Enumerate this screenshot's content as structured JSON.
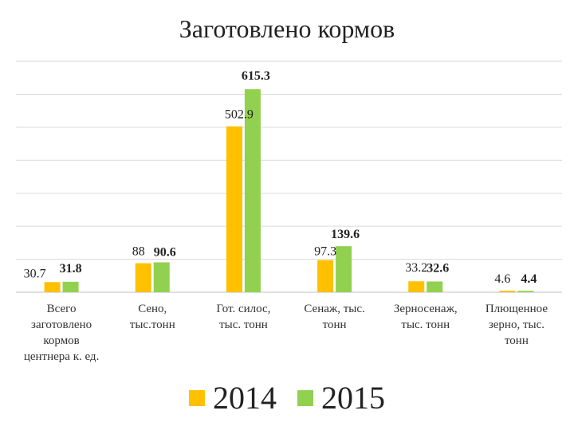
{
  "chart_data": {
    "type": "bar",
    "title": "Заготовлено кормов",
    "categories": [
      "Всего заготовлено кормов центнера к. ед.",
      "Сено, тыс.тонн",
      "Гот. силос, тыс. тонн",
      "Сенаж, тыс. тонн",
      "Зерносенаж, тыс. тонн",
      "Плющенное зерно, тыс. тонн"
    ],
    "category_lines": [
      [
        "Всего",
        "заготовлено",
        "кормов",
        "центнера к. ед."
      ],
      [
        "Сено,",
        "тыс.тонн"
      ],
      [
        "Гот. силос,",
        "тыс. тонн"
      ],
      [
        "Сенаж, тыс.",
        "тонн"
      ],
      [
        "Зерносенаж,",
        "тыс. тонн"
      ],
      [
        "Плющенное",
        "зерно, тыс.",
        "тонн"
      ]
    ],
    "series": [
      {
        "name": "2014",
        "color": "#FFC000",
        "values": [
          30.7,
          88,
          502.9,
          97.3,
          33.2,
          4.6
        ],
        "labels": [
          "30.7",
          "88",
          "502.9",
          "97.3",
          "33.2",
          "4.6"
        ]
      },
      {
        "name": "2015",
        "color": "#92D050",
        "values": [
          31.8,
          90.6,
          615.3,
          139.6,
          32.6,
          4.4
        ],
        "labels": [
          "31.8",
          "90.6",
          "615.3",
          "139.6",
          "32.6",
          "4.4"
        ]
      }
    ],
    "ylim": [
      0,
      700
    ],
    "grid": true,
    "legend_position": "bottom"
  }
}
